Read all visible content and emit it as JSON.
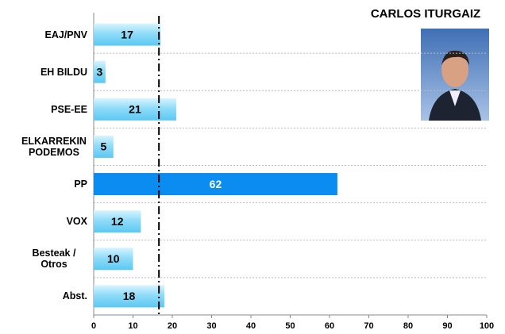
{
  "chart_data": {
    "type": "bar",
    "orientation": "horizontal",
    "title": "CARLOS ITURGAIZ",
    "categories": [
      "EAJ/PNV",
      "EH BILDU",
      "PSE-EE",
      "ELKARREKIN PODEMOS",
      "PP",
      "VOX",
      "Besteak / Otros",
      "Abst."
    ],
    "values": [
      17,
      3,
      21,
      5,
      62,
      12,
      10,
      18
    ],
    "colors": [
      "#8fdcf8",
      "#8fdcf8",
      "#8fdcf8",
      "#8fdcf8",
      "#0a8cf0",
      "#8fdcf8",
      "#8fdcf8",
      "#8fdcf8"
    ],
    "reference_line": 16.6,
    "xlim": [
      0,
      100
    ],
    "xticks": [
      0,
      10,
      20,
      30,
      40,
      50,
      60,
      70,
      80,
      90,
      100
    ]
  }
}
